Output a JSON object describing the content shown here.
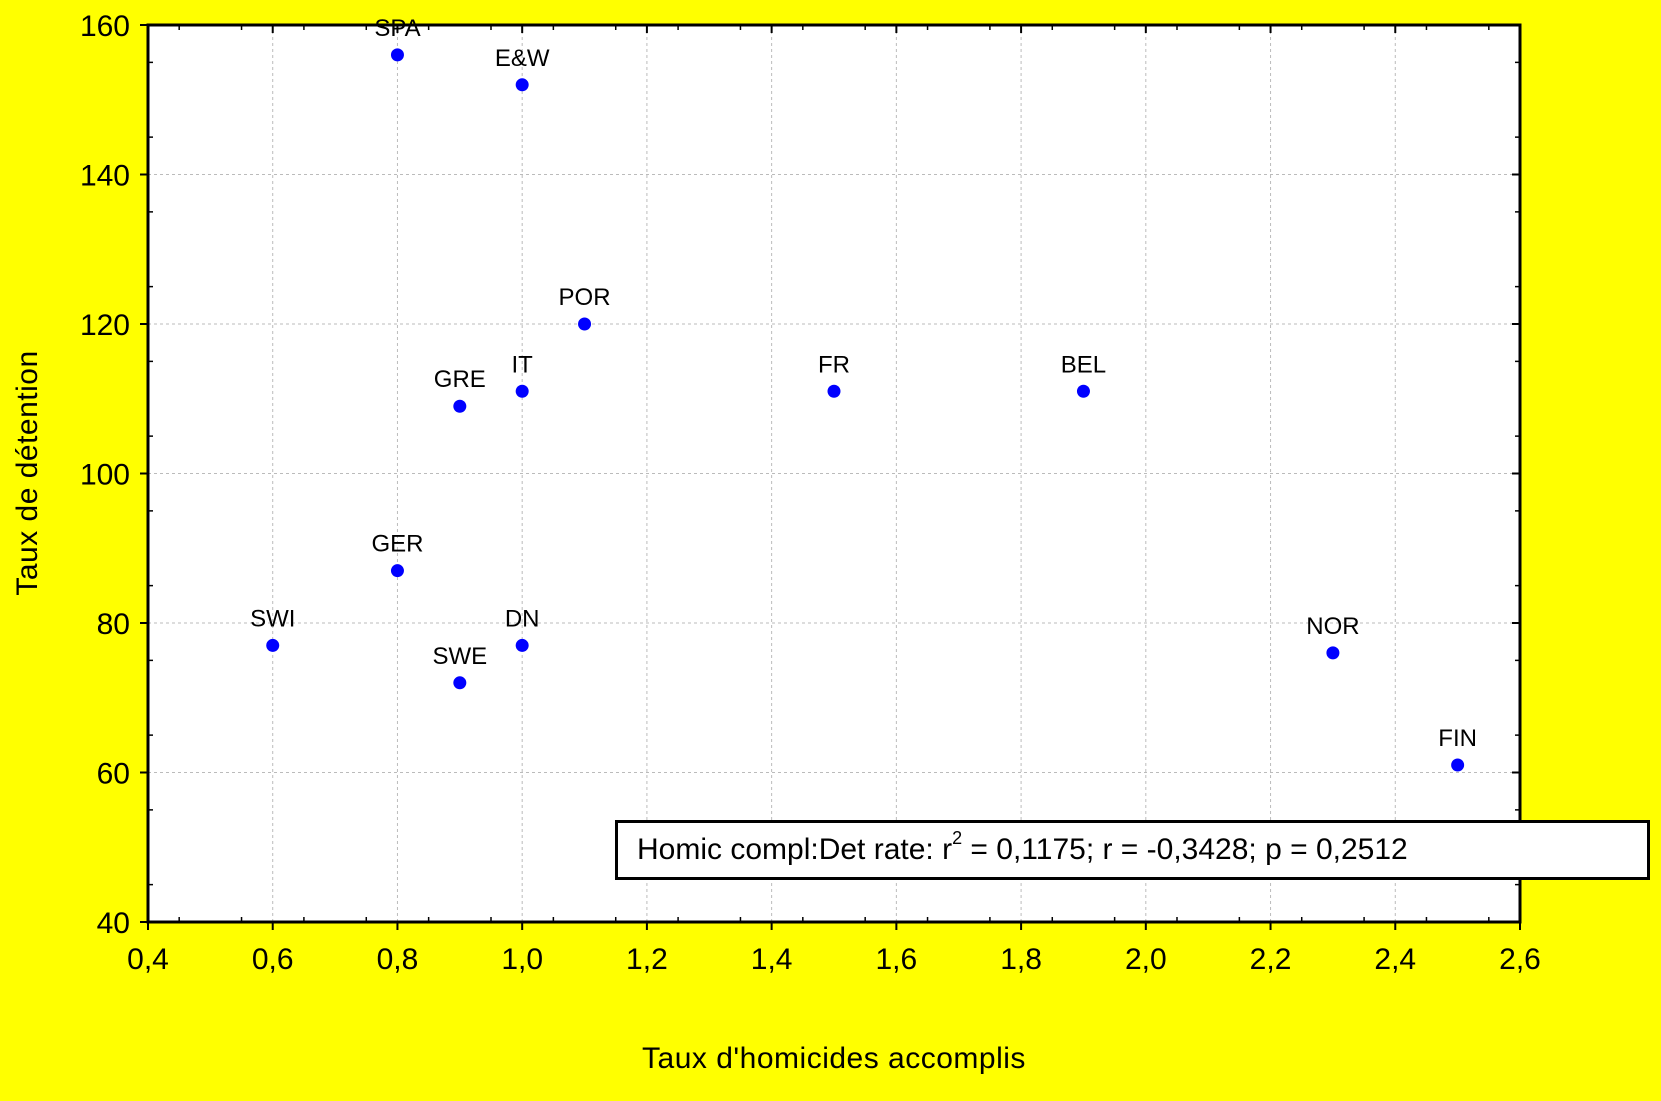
{
  "chart_data": {
    "type": "scatter",
    "xlabel": "Taux d'homicides accomplis",
    "ylabel": "Taux de détention",
    "xlim": [
      0.4,
      2.6
    ],
    "ylim": [
      40,
      160
    ],
    "x_ticks": [
      "0,4",
      "0,6",
      "0,8",
      "1,0",
      "1,2",
      "1,4",
      "1,6",
      "1,8",
      "2,0",
      "2,2",
      "2,4",
      "2,6"
    ],
    "y_ticks": [
      "40",
      "60",
      "80",
      "100",
      "120",
      "140",
      "160"
    ],
    "grid": true,
    "marker_color": "#0000ff",
    "background_color": "#ffff00",
    "points": [
      {
        "label": "SPA",
        "x": 0.8,
        "y": 156
      },
      {
        "label": "E&W",
        "x": 1.0,
        "y": 152
      },
      {
        "label": "POR",
        "x": 1.1,
        "y": 120
      },
      {
        "label": "IT",
        "x": 1.0,
        "y": 111
      },
      {
        "label": "GRE",
        "x": 0.9,
        "y": 109
      },
      {
        "label": "FR",
        "x": 1.5,
        "y": 111
      },
      {
        "label": "BEL",
        "x": 1.9,
        "y": 111
      },
      {
        "label": "GER",
        "x": 0.8,
        "y": 87
      },
      {
        "label": "SWI",
        "x": 0.6,
        "y": 77
      },
      {
        "label": "DN",
        "x": 1.0,
        "y": 77
      },
      {
        "label": "SWE",
        "x": 0.9,
        "y": 72
      },
      {
        "label": "NOR",
        "x": 2.3,
        "y": 76
      },
      {
        "label": "FIN",
        "x": 2.5,
        "y": 61
      }
    ],
    "annotation": {
      "prefix": "Homic  compl:Det rate:  r",
      "sup": "2",
      "suffix": " = 0,1175;  r = -0,3428; p = 0,2512"
    }
  }
}
